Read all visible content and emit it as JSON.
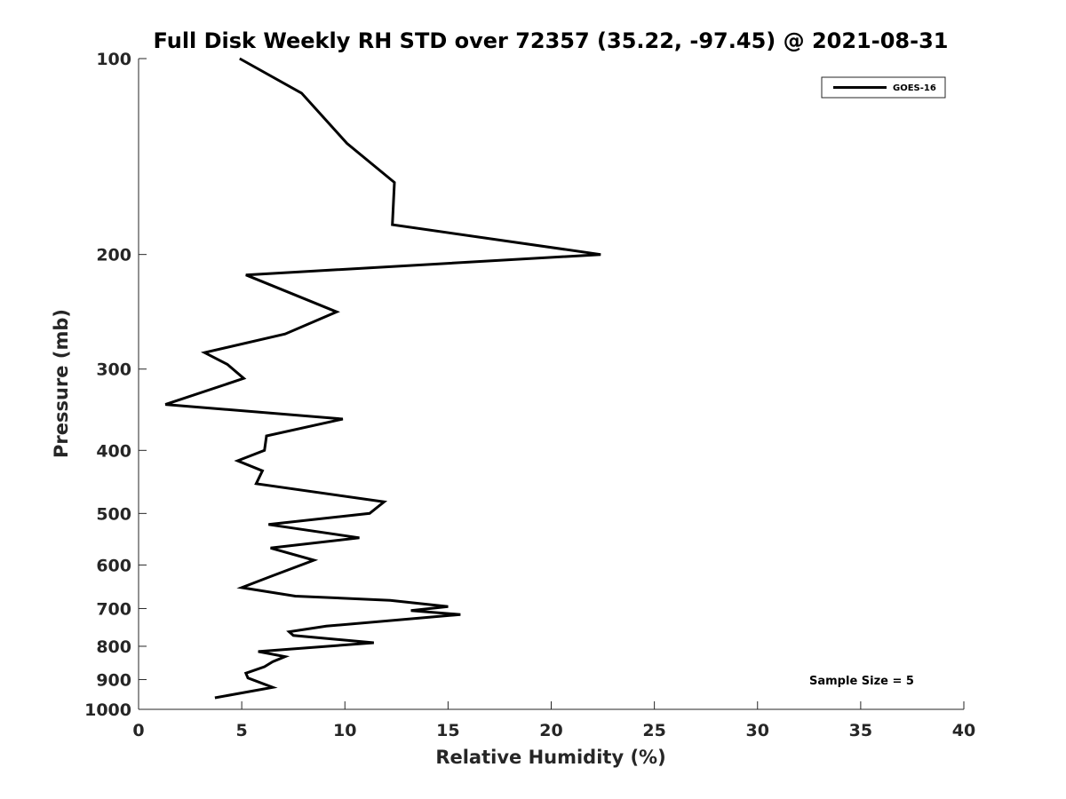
{
  "chart_data": {
    "type": "line",
    "title": "Full Disk Weekly RH STD over 72357 (35.22, -97.45) @ 2021-08-31",
    "xlabel": "Relative Humidity (%)",
    "ylabel": "Pressure (mb)",
    "xlim": [
      0,
      40
    ],
    "ylim": [
      100,
      1000
    ],
    "yscale": "log",
    "y_reversed": true,
    "xticks": [
      0,
      5,
      10,
      15,
      20,
      25,
      30,
      35,
      40
    ],
    "xtick_labels": [
      "0",
      "5",
      "10",
      "15",
      "20",
      "25",
      "30",
      "35",
      "40"
    ],
    "yticks": [
      100,
      200,
      300,
      400,
      500,
      600,
      700,
      800,
      900,
      1000
    ],
    "ytick_labels": [
      "100",
      "200",
      "300",
      "400",
      "500",
      "600",
      "700",
      "800",
      "900",
      "1000"
    ],
    "grid": false,
    "legend_position": "top-right",
    "annotation": "Sample Size = 5",
    "line_color": "#000000",
    "series": [
      {
        "name": "GOES-16",
        "x": [
          4.9,
          7.9,
          10.1,
          12.4,
          12.3,
          22.4,
          5.2,
          9.6,
          7.1,
          3.2,
          4.3,
          5.1,
          1.3,
          9.9,
          6.2,
          6.1,
          4.8,
          6.0,
          5.7,
          11.9,
          11.2,
          6.3,
          10.7,
          6.4,
          8.5,
          6.4,
          5.0,
          7.6,
          12.2,
          15.0,
          13.2,
          15.6,
          9.1,
          7.3,
          7.5,
          11.4,
          5.8,
          7.1,
          6.5,
          6.1,
          5.2,
          5.3,
          6.5,
          3.7
        ],
        "y": [
          100,
          113,
          135,
          155,
          180,
          200,
          215,
          245,
          265,
          283,
          295,
          310,
          340,
          358,
          380,
          400,
          415,
          430,
          450,
          480,
          500,
          520,
          545,
          565,
          590,
          625,
          650,
          670,
          680,
          695,
          705,
          715,
          745,
          760,
          770,
          790,
          815,
          830,
          845,
          860,
          880,
          895,
          925,
          960
        ]
      }
    ]
  }
}
